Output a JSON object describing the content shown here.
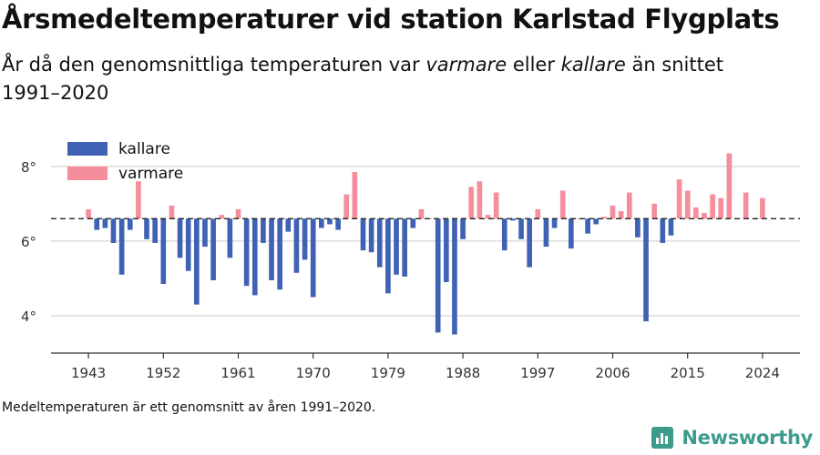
{
  "title": "Årsmedeltemperaturer vid station Karlstad Flygplats",
  "subtitle": {
    "part1": "År då den genomsnittliga temperaturen var ",
    "warmer_word": "varmare",
    "part2": " eller ",
    "colder_word": "kallare",
    "part3": " än snittet 1991–2020"
  },
  "footnote": "Medeltemperaturen är ett genomsnitt av åren 1991–2020.",
  "brand": {
    "name": "Newsworthy",
    "icon": "newsworthy-logo-icon",
    "color": "#3d9b8c"
  },
  "colors": {
    "cold": "#3f62b5",
    "warm": "#f58d9b",
    "baseline": "#222222",
    "grid": "#dcdcdc"
  },
  "chart_data": {
    "type": "bar",
    "title": "Årsmedeltemperaturer vid station Karlstad Flygplats",
    "xlabel": "",
    "ylabel": "",
    "baseline": 6.6,
    "ylim": [
      3,
      8.8
    ],
    "yticks": [
      4,
      6,
      8
    ],
    "ytick_labels": [
      "4°",
      "6°",
      "8°"
    ],
    "xticks": [
      1943,
      1952,
      1961,
      1970,
      1979,
      1988,
      1997,
      2006,
      2015,
      2024
    ],
    "xlim": [
      1938.5,
      2028.5
    ],
    "grid": true,
    "legend": {
      "position": "top-left",
      "entries": [
        {
          "label": "kallare",
          "color": "#3f62b5"
        },
        {
          "label": "varmare",
          "color": "#f58d9b"
        }
      ]
    },
    "series": [
      {
        "years": [
          1943,
          1944,
          1945,
          1946,
          1947,
          1948,
          1949,
          1950,
          1951,
          1952,
          1953,
          1954,
          1955,
          1956,
          1957,
          1958,
          1959,
          1960,
          1961,
          1962,
          1963,
          1964,
          1965,
          1966,
          1967,
          1968,
          1969,
          1970,
          1971,
          1972,
          1973,
          1974,
          1975,
          1976,
          1977,
          1978,
          1979,
          1980,
          1981,
          1982,
          1983,
          1984,
          1985,
          1986,
          1987,
          1988,
          1989,
          1990,
          1991,
          1992,
          1993,
          1994,
          1995,
          1996,
          1997,
          1998,
          1999,
          2000,
          2001,
          2002,
          2003,
          2004,
          2005,
          2006,
          2007,
          2008,
          2009,
          2010,
          2011,
          2012,
          2013,
          2014,
          2015,
          2016,
          2017,
          2018,
          2019,
          2020,
          2021,
          2022,
          2023,
          2024
        ],
        "values": [
          6.85,
          6.3,
          6.35,
          5.95,
          5.1,
          6.3,
          7.6,
          6.05,
          5.95,
          4.85,
          6.95,
          5.55,
          5.2,
          4.3,
          5.85,
          4.95,
          6.7,
          5.55,
          6.85,
          4.8,
          4.55,
          5.95,
          4.95,
          4.7,
          6.25,
          5.15,
          5.5,
          4.5,
          6.35,
          6.45,
          6.3,
          7.25,
          7.85,
          5.75,
          5.7,
          5.3,
          4.6,
          5.1,
          5.05,
          6.35,
          6.85,
          6.6,
          3.55,
          4.9,
          3.5,
          6.05,
          7.45,
          7.6,
          6.7,
          7.3,
          5.75,
          6.55,
          6.05,
          5.3,
          6.85,
          5.85,
          6.35,
          7.35,
          5.8,
          6.6,
          6.2,
          6.45,
          6.65,
          6.95,
          6.8,
          7.3,
          6.1,
          3.85,
          7.0,
          5.95,
          6.15,
          7.65,
          7.35,
          6.9,
          6.75,
          7.25,
          7.15,
          8.35,
          6.6,
          7.3,
          6.6,
          7.15
        ]
      }
    ]
  }
}
